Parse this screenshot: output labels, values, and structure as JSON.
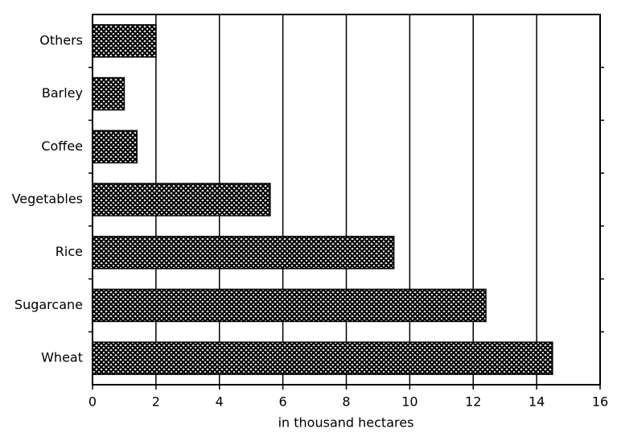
{
  "chart_data": {
    "type": "bar",
    "orientation": "horizontal",
    "categories": [
      "Others",
      "Barley",
      "Coffee",
      "Vegetables",
      "Rice",
      "Sugarcane",
      "Wheat"
    ],
    "values": [
      2,
      1,
      1.4,
      5.6,
      9.5,
      12.4,
      14.5
    ],
    "color": "#000000",
    "xlabel": "in thousand hectares",
    "xlim": [
      0,
      16
    ],
    "xticks": [
      0,
      2,
      4,
      6,
      8,
      10,
      12,
      14,
      16
    ],
    "grid": true
  }
}
